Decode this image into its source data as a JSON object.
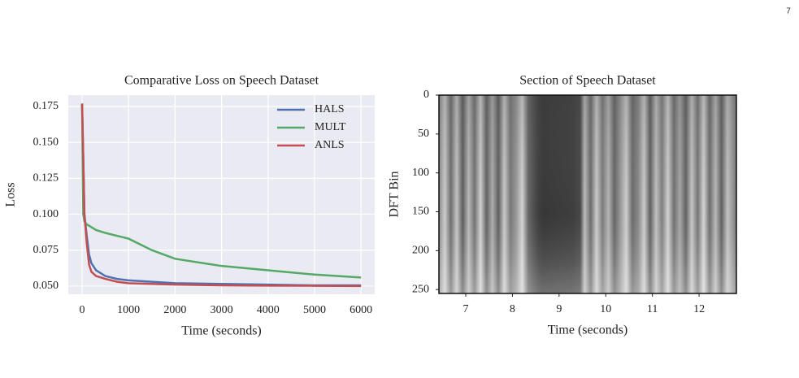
{
  "page_number": "7",
  "chart_data": [
    {
      "type": "line",
      "title": "Comparative Loss on Speech Dataset",
      "xlabel": "Time (seconds)",
      "ylabel": "Loss",
      "x": [
        0,
        25,
        50,
        100,
        150,
        200,
        300,
        500,
        750,
        1000,
        1500,
        2000,
        3000,
        4000,
        5000,
        6000
      ],
      "series": [
        {
          "name": "HALS",
          "color": "#4c72b0",
          "values": [
            0.177,
            0.14,
            0.1,
            0.085,
            0.072,
            0.066,
            0.061,
            0.057,
            0.055,
            0.054,
            0.053,
            0.052,
            0.0515,
            0.051,
            0.0505,
            0.0505
          ]
        },
        {
          "name": "MULT",
          "color": "#55a868",
          "values": [
            0.177,
            0.1,
            0.095,
            0.093,
            0.092,
            0.091,
            0.089,
            0.087,
            0.085,
            0.083,
            0.075,
            0.069,
            0.064,
            0.061,
            0.058,
            0.056
          ]
        },
        {
          "name": "ANLS",
          "color": "#c44e52",
          "values": [
            0.177,
            0.14,
            0.1,
            0.08,
            0.065,
            0.06,
            0.057,
            0.055,
            0.053,
            0.052,
            0.0515,
            0.051,
            0.0505,
            0.0503,
            0.0502,
            0.05
          ]
        }
      ],
      "xlim": [
        -297,
        6294
      ],
      "xticks": [
        0,
        1000,
        2000,
        3000,
        4000,
        5000,
        6000
      ],
      "ylim": [
        0.0443,
        0.1829
      ],
      "yticks": [
        {
          "value": 0.05,
          "label": "0.050"
        },
        0.075,
        {
          "value": 0.1,
          "label": "0.100"
        },
        0.125,
        {
          "value": 0.15,
          "label": "0.150"
        },
        0.175
      ],
      "grid": true,
      "legend": "upper right"
    },
    {
      "type": "spectrogram",
      "title": "Section of Speech Dataset",
      "xlabel": "Time (seconds)",
      "ylabel": "DFT Bin",
      "xlim": [
        6.425,
        12.8
      ],
      "xticks": [
        7,
        8,
        9,
        10,
        11,
        12
      ],
      "ylim": [
        0,
        255
      ],
      "yticks": [
        0,
        50,
        100,
        150,
        200,
        250
      ],
      "y_inverted": true
    }
  ]
}
